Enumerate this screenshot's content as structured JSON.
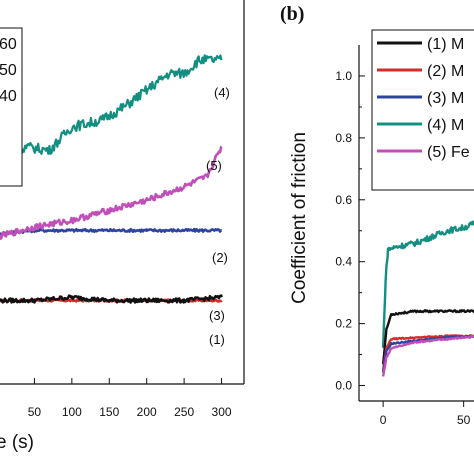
{
  "chart_data": [
    {
      "panel": "left",
      "type": "line",
      "xlabel_visible": "e (s)",
      "ylabel": "",
      "x_ticks": [
        "50",
        "100",
        "150",
        "200",
        "250",
        "300"
      ],
      "xlim": [
        0,
        330
      ],
      "ylim": [
        -0.05,
        1.1
      ],
      "legend_fragments": [
        "60",
        "50",
        "40"
      ],
      "series": [
        {
          "name": "(1)",
          "color": "#d62b2b",
          "x": [
            0,
            50,
            100,
            150,
            200,
            250,
            300
          ],
          "y": [
            0.2,
            0.2,
            0.2,
            0.2,
            0.2,
            0.2,
            0.2
          ]
        },
        {
          "name": "(2)",
          "color": "#2c44a0",
          "x": [
            0,
            50,
            100,
            150,
            200,
            250,
            300
          ],
          "y": [
            0.4,
            0.41,
            0.41,
            0.41,
            0.41,
            0.41,
            0.41
          ]
        },
        {
          "name": "(3)",
          "color": "#111111",
          "x": [
            0,
            50,
            100,
            150,
            200,
            250,
            300
          ],
          "y": [
            0.2,
            0.2,
            0.21,
            0.2,
            0.2,
            0.2,
            0.21
          ]
        },
        {
          "name": "(4)",
          "color": "#138f82",
          "x": [
            0,
            40,
            70,
            100,
            140,
            170,
            200,
            230,
            250,
            270,
            300
          ],
          "y": [
            0.63,
            0.66,
            0.65,
            0.72,
            0.74,
            0.78,
            0.83,
            0.88,
            0.88,
            0.92,
            0.92
          ]
        },
        {
          "name": "(5)",
          "color": "#c04fba",
          "x": [
            0,
            50,
            100,
            150,
            200,
            250,
            280,
            300
          ],
          "y": [
            0.39,
            0.42,
            0.44,
            0.47,
            0.5,
            0.54,
            0.57,
            0.66
          ]
        }
      ]
    },
    {
      "panel": "right",
      "panel_label": "(b)",
      "type": "line",
      "xlabel": "",
      "ylabel": "Coefficient of friction",
      "x_ticks": [
        "0",
        "50"
      ],
      "y_ticks": [
        "0.0",
        "0.2",
        "0.4",
        "0.6",
        "0.8",
        "1.0"
      ],
      "xlim": [
        -15,
        85
      ],
      "ylim": [
        -0.05,
        1.1
      ],
      "legend": [
        {
          "label": "(1) M",
          "color": "#111111"
        },
        {
          "label": "(2) M",
          "color": "#d62b2b"
        },
        {
          "label": "(3) M",
          "color": "#2c44a0"
        },
        {
          "label": "(4) M",
          "color": "#138f82"
        },
        {
          "label": "(5) Fe",
          "color": "#c04fba"
        }
      ],
      "series": [
        {
          "name": "(1) M",
          "color": "#111111",
          "x": [
            0,
            2,
            5,
            20,
            40,
            60,
            85
          ],
          "y": [
            0.07,
            0.18,
            0.23,
            0.24,
            0.24,
            0.24,
            0.24
          ]
        },
        {
          "name": "(2) M",
          "color": "#d62b2b",
          "x": [
            0,
            2,
            5,
            20,
            40,
            60,
            85
          ],
          "y": [
            0.05,
            0.12,
            0.15,
            0.155,
            0.16,
            0.16,
            0.16
          ]
        },
        {
          "name": "(3) M",
          "color": "#2c44a0",
          "x": [
            0,
            2,
            5,
            20,
            40,
            60,
            85
          ],
          "y": [
            0.04,
            0.11,
            0.135,
            0.145,
            0.155,
            0.16,
            0.16
          ]
        },
        {
          "name": "(4) M",
          "color": "#138f82",
          "x": [
            0,
            1.5,
            3,
            10,
            20,
            30,
            40,
            50,
            60,
            70,
            85
          ],
          "y": [
            0.12,
            0.34,
            0.44,
            0.45,
            0.46,
            0.48,
            0.5,
            0.51,
            0.53,
            0.55,
            0.56
          ]
        },
        {
          "name": "(5) Fe",
          "color": "#c04fba",
          "x": [
            0,
            2,
            5,
            20,
            40,
            60,
            85
          ],
          "y": [
            0.03,
            0.09,
            0.12,
            0.14,
            0.15,
            0.16,
            0.165
          ]
        }
      ]
    }
  ]
}
